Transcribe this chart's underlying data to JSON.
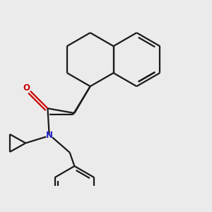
{
  "background_color": "#ebebeb",
  "bond_color": "#1a1a1a",
  "nitrogen_color": "#2020cc",
  "oxygen_color": "#cc0000",
  "line_width": 1.6,
  "figsize": [
    3.0,
    3.0
  ],
  "dpi": 100
}
